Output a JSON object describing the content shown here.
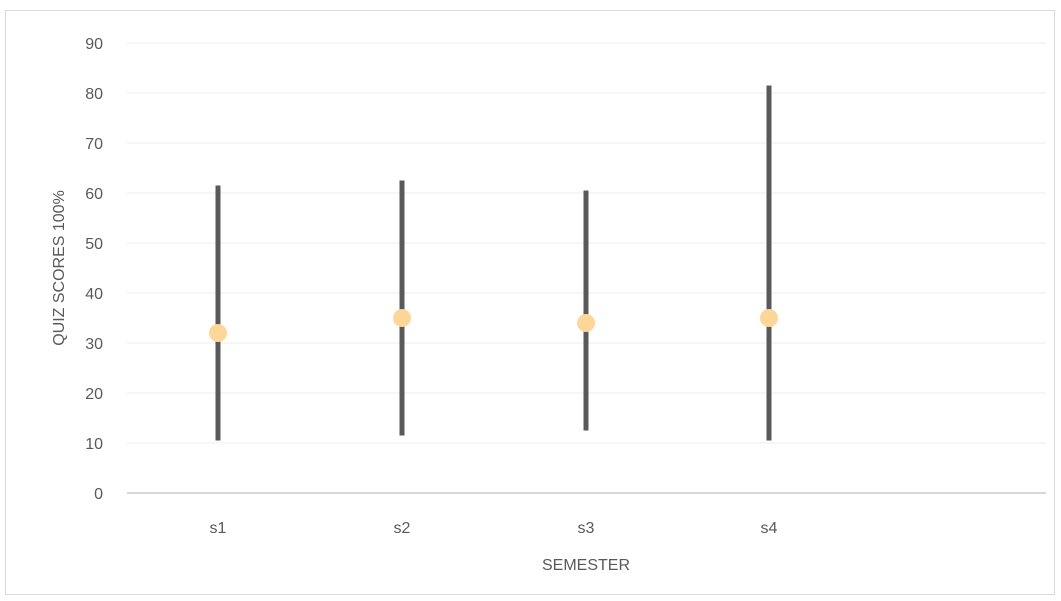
{
  "chart_data": {
    "type": "scatter",
    "subtype": "range-with-points",
    "title": "",
    "xlabel": "SEMESTER",
    "ylabel": "QUIZ SCORES 100%",
    "categories": [
      "s1",
      "s2",
      "s3",
      "s4"
    ],
    "ylim": [
      0,
      90
    ],
    "yticks": [
      0,
      10,
      20,
      30,
      40,
      50,
      60,
      70,
      80,
      90
    ],
    "grid": true,
    "legend": "none",
    "series": [
      {
        "values": [
          32,
          35,
          34,
          35
        ]
      }
    ],
    "ranges": {
      "low": [
        10.5,
        11.5,
        12.5,
        10.5
      ],
      "high": [
        61.5,
        62.5,
        60.5,
        81.5
      ]
    },
    "colors": {
      "range_line": "#595959",
      "point": "#ffd699",
      "grid": "#ececec",
      "axis": "#bfbfbf",
      "text": "#595959"
    }
  }
}
